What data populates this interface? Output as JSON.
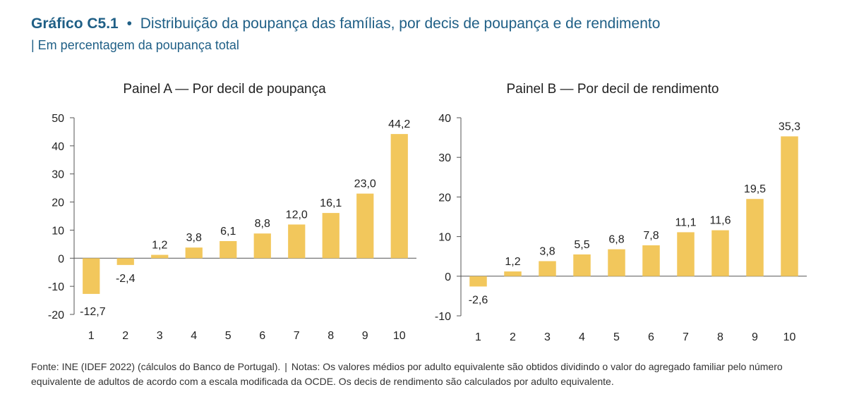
{
  "header": {
    "number": "Gráfico C5.1",
    "bullet": "•",
    "title": "Distribuição da poupança das famílias, por decis de poupança e de rendimento",
    "subtitle": "| Em percentagem da poupança total"
  },
  "colors": {
    "bar": "#f2c75c",
    "title": "#1f5f86",
    "axis": "#555555"
  },
  "chart_data": [
    {
      "type": "bar",
      "title": "Painel A — Por decil de poupança",
      "categories": [
        "1",
        "2",
        "3",
        "4",
        "5",
        "6",
        "7",
        "8",
        "9",
        "10"
      ],
      "values": [
        -12.7,
        -2.4,
        1.2,
        3.8,
        6.1,
        8.8,
        12.0,
        16.1,
        23.0,
        44.2
      ],
      "labels": [
        "-12,7",
        "-2,4",
        "1,2",
        "3,8",
        "6,1",
        "8,8",
        "12,0",
        "16,1",
        "23,0",
        "44,2"
      ],
      "ylim": [
        -20,
        50
      ],
      "yticks": [
        50,
        40,
        30,
        20,
        10,
        0,
        -10,
        -20
      ],
      "xlabel": "",
      "ylabel": ""
    },
    {
      "type": "bar",
      "title": "Painel B — Por decil de rendimento",
      "categories": [
        "1",
        "2",
        "3",
        "4",
        "5",
        "6",
        "7",
        "8",
        "9",
        "10"
      ],
      "values": [
        -2.6,
        1.2,
        3.8,
        5.5,
        6.8,
        7.8,
        11.1,
        11.6,
        19.5,
        35.3
      ],
      "labels": [
        "-2,6",
        "1,2",
        "3,8",
        "5,5",
        "6,8",
        "7,8",
        "11,1",
        "11,6",
        "19,5",
        "35,3"
      ],
      "ylim": [
        -10,
        40
      ],
      "yticks": [
        40,
        30,
        20,
        10,
        0,
        -10
      ],
      "xlabel": "",
      "ylabel": ""
    }
  ],
  "footer": {
    "source": "Fonte: INE (IDEF 2022) (cálculos do Banco de Portugal).",
    "separator": "|",
    "notes": "Notas: Os valores médios por adulto equivalente são obtidos dividindo o valor do agregado familiar pelo número equivalente de adultos de acordo com a escala modificada da OCDE. Os decis de rendimento são calculados por adulto equivalente."
  }
}
